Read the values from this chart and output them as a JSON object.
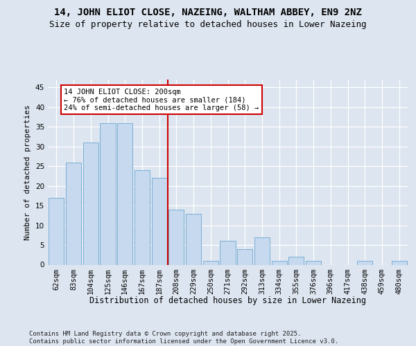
{
  "title1": "14, JOHN ELIOT CLOSE, NAZEING, WALTHAM ABBEY, EN9 2NZ",
  "title2": "Size of property relative to detached houses in Lower Nazeing",
  "xlabel": "Distribution of detached houses by size in Lower Nazeing",
  "ylabel": "Number of detached properties",
  "categories": [
    "62sqm",
    "83sqm",
    "104sqm",
    "125sqm",
    "146sqm",
    "167sqm",
    "187sqm",
    "208sqm",
    "229sqm",
    "250sqm",
    "271sqm",
    "292sqm",
    "313sqm",
    "334sqm",
    "355sqm",
    "376sqm",
    "396sqm",
    "417sqm",
    "438sqm",
    "459sqm",
    "480sqm"
  ],
  "values": [
    17,
    26,
    31,
    36,
    36,
    24,
    22,
    14,
    13,
    1,
    6,
    4,
    7,
    1,
    2,
    1,
    0,
    0,
    1,
    0,
    1
  ],
  "bar_color": "#c6d9ee",
  "bar_edge_color": "#7aafd4",
  "vline_index": 7,
  "vline_color": "#cc0000",
  "annotation_text": "14 JOHN ELIOT CLOSE: 200sqm\n← 76% of detached houses are smaller (184)\n24% of semi-detached houses are larger (58) →",
  "ylim": [
    0,
    47
  ],
  "yticks": [
    0,
    5,
    10,
    15,
    20,
    25,
    30,
    35,
    40,
    45
  ],
  "background_color": "#dde5f0",
  "grid_color": "#ffffff",
  "footer": "Contains HM Land Registry data © Crown copyright and database right 2025.\nContains public sector information licensed under the Open Government Licence v3.0.",
  "title_fontsize": 10,
  "subtitle_fontsize": 9,
  "xlabel_fontsize": 8.5,
  "ylabel_fontsize": 8,
  "tick_fontsize": 7.5,
  "ann_fontsize": 7.5,
  "footer_fontsize": 6.5
}
